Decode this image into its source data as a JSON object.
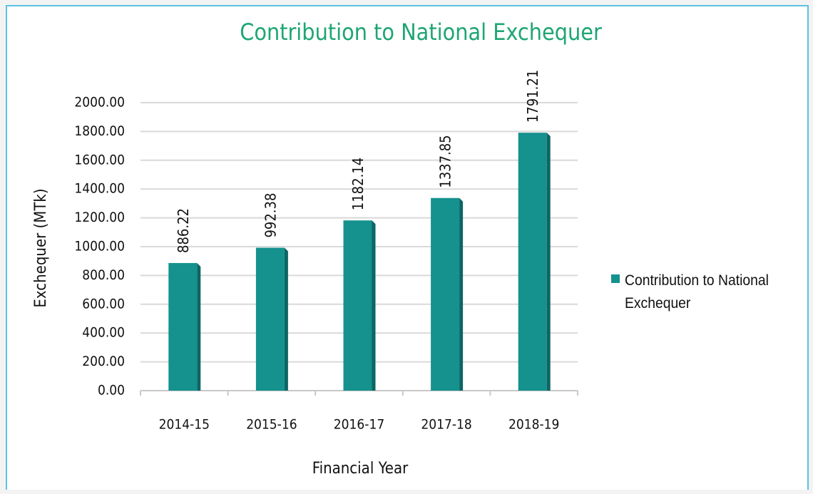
{
  "chart_data": {
    "type": "bar",
    "title": "Contribution to National Exchequer",
    "x_label": "Financial Year",
    "y_label": "Exchequer (MTk)",
    "categories": [
      "2014-15",
      "2015-16",
      "2016-17",
      "2017-18",
      "2018-19"
    ],
    "series": [
      {
        "name": "Contribution to National Exchequer",
        "color": "#15918e",
        "values": [
          886.22,
          992.38,
          1182.14,
          1337.85,
          1791.21
        ]
      }
    ],
    "ylim": [
      0,
      2000
    ],
    "yticks": [
      {
        "value": 0,
        "label": "0.00"
      },
      {
        "value": 200,
        "label": "200.00"
      },
      {
        "value": 400,
        "label": "400.00"
      },
      {
        "value": 600,
        "label": "600.00"
      },
      {
        "value": 800,
        "label": "800.00"
      },
      {
        "value": 1000,
        "label": "1000.00"
      },
      {
        "value": 1200,
        "label": "1200.00"
      },
      {
        "value": 1400,
        "label": "1400.00"
      },
      {
        "value": 1600,
        "label": "1600.00"
      },
      {
        "value": 1800,
        "label": "1800.00"
      },
      {
        "value": 2000,
        "label": "2000.00"
      }
    ],
    "grid": true,
    "legend": "right"
  }
}
